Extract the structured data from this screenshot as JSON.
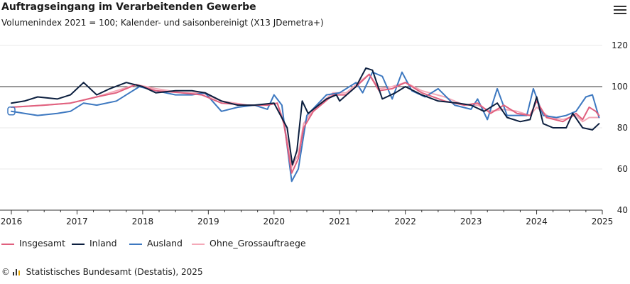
{
  "header": {
    "title": "Auftragseingang im Verarbeitenden Gewerbe",
    "subtitle": "Volumenindex 2021 = 100; Kalender- und saisonbereinigt (X13 JDemetra+)"
  },
  "menu": {
    "icon": "hamburger-menu-icon"
  },
  "footer": {
    "copyright": "©",
    "icon": "destatis-logo-icon",
    "source": "Statistisches Bundesamt (Destatis), 2025"
  },
  "colors": {
    "insgesamt": "#e0607e",
    "inland": "#0c1f3f",
    "ausland": "#3d78c0",
    "ohne": "#f4a9b8",
    "reference_line": "#333333",
    "grid": "#e8e8e8"
  },
  "chart_data": {
    "type": "line",
    "title": "Auftragseingang im Verarbeitenden Gewerbe",
    "subtitle": "Volumenindex 2021 = 100; Kalender- und saisonbereinigt (X13 JDemetra+)",
    "xlabel": "",
    "ylabel": "",
    "x_range": [
      2016,
      2025
    ],
    "ylim": [
      40,
      120
    ],
    "y_ticks": [
      40,
      60,
      80,
      100,
      120
    ],
    "x_ticks": [
      "2016",
      "2017",
      "2018",
      "2019",
      "2020",
      "2021",
      "2022",
      "2023",
      "2024",
      "2025"
    ],
    "reference_line": 100,
    "grid": true,
    "legend_position": "bottom-left",
    "series": [
      {
        "name": "Insgesamt",
        "color_key": "insgesamt",
        "values": [
          {
            "x": 2016.0,
            "y": 90
          },
          {
            "x": 2016.5,
            "y": 91
          },
          {
            "x": 2016.9,
            "y": 92
          },
          {
            "x": 2017.3,
            "y": 95
          },
          {
            "x": 2017.6,
            "y": 97
          },
          {
            "x": 2017.9,
            "y": 101
          },
          {
            "x": 2018.2,
            "y": 98
          },
          {
            "x": 2018.6,
            "y": 97
          },
          {
            "x": 2018.9,
            "y": 96
          },
          {
            "x": 2019.2,
            "y": 92
          },
          {
            "x": 2019.6,
            "y": 91
          },
          {
            "x": 2019.9,
            "y": 91
          },
          {
            "x": 2020.05,
            "y": 92
          },
          {
            "x": 2020.15,
            "y": 82
          },
          {
            "x": 2020.27,
            "y": 58
          },
          {
            "x": 2020.37,
            "y": 65
          },
          {
            "x": 2020.45,
            "y": 80
          },
          {
            "x": 2020.6,
            "y": 88
          },
          {
            "x": 2020.9,
            "y": 96
          },
          {
            "x": 2021.1,
            "y": 96
          },
          {
            "x": 2021.25,
            "y": 100
          },
          {
            "x": 2021.45,
            "y": 106
          },
          {
            "x": 2021.6,
            "y": 98
          },
          {
            "x": 2021.8,
            "y": 99
          },
          {
            "x": 2022.0,
            "y": 102
          },
          {
            "x": 2022.25,
            "y": 97
          },
          {
            "x": 2022.6,
            "y": 93
          },
          {
            "x": 2022.9,
            "y": 91
          },
          {
            "x": 2023.1,
            "y": 92
          },
          {
            "x": 2023.3,
            "y": 87
          },
          {
            "x": 2023.5,
            "y": 91
          },
          {
            "x": 2023.7,
            "y": 87
          },
          {
            "x": 2023.9,
            "y": 86
          },
          {
            "x": 2024.0,
            "y": 93
          },
          {
            "x": 2024.15,
            "y": 85
          },
          {
            "x": 2024.4,
            "y": 83
          },
          {
            "x": 2024.6,
            "y": 87
          },
          {
            "x": 2024.7,
            "y": 84
          },
          {
            "x": 2024.8,
            "y": 90
          },
          {
            "x": 2024.9,
            "y": 88
          },
          {
            "x": 2024.95,
            "y": 86
          }
        ]
      },
      {
        "name": "Inland",
        "color_key": "inland",
        "values": [
          {
            "x": 2016.0,
            "y": 92
          },
          {
            "x": 2016.2,
            "y": 93
          },
          {
            "x": 2016.4,
            "y": 95
          },
          {
            "x": 2016.7,
            "y": 94
          },
          {
            "x": 2016.9,
            "y": 96
          },
          {
            "x": 2017.1,
            "y": 102
          },
          {
            "x": 2017.3,
            "y": 96
          },
          {
            "x": 2017.5,
            "y": 99
          },
          {
            "x": 2017.75,
            "y": 102
          },
          {
            "x": 2018.0,
            "y": 100
          },
          {
            "x": 2018.2,
            "y": 97
          },
          {
            "x": 2018.5,
            "y": 98
          },
          {
            "x": 2018.75,
            "y": 98
          },
          {
            "x": 2018.95,
            "y": 97
          },
          {
            "x": 2019.2,
            "y": 93
          },
          {
            "x": 2019.45,
            "y": 91
          },
          {
            "x": 2019.7,
            "y": 91
          },
          {
            "x": 2020.0,
            "y": 92
          },
          {
            "x": 2020.2,
            "y": 80
          },
          {
            "x": 2020.28,
            "y": 62
          },
          {
            "x": 2020.35,
            "y": 69
          },
          {
            "x": 2020.43,
            "y": 93
          },
          {
            "x": 2020.52,
            "y": 87
          },
          {
            "x": 2020.8,
            "y": 94
          },
          {
            "x": 2020.95,
            "y": 96
          },
          {
            "x": 2021.0,
            "y": 93
          },
          {
            "x": 2021.25,
            "y": 100
          },
          {
            "x": 2021.4,
            "y": 109
          },
          {
            "x": 2021.5,
            "y": 108
          },
          {
            "x": 2021.65,
            "y": 94
          },
          {
            "x": 2021.85,
            "y": 97
          },
          {
            "x": 2022.0,
            "y": 100
          },
          {
            "x": 2022.25,
            "y": 96
          },
          {
            "x": 2022.5,
            "y": 93
          },
          {
            "x": 2022.8,
            "y": 92
          },
          {
            "x": 2023.0,
            "y": 91
          },
          {
            "x": 2023.2,
            "y": 88
          },
          {
            "x": 2023.4,
            "y": 92
          },
          {
            "x": 2023.55,
            "y": 85
          },
          {
            "x": 2023.75,
            "y": 83
          },
          {
            "x": 2023.9,
            "y": 84
          },
          {
            "x": 2024.0,
            "y": 95
          },
          {
            "x": 2024.1,
            "y": 82
          },
          {
            "x": 2024.25,
            "y": 80
          },
          {
            "x": 2024.45,
            "y": 80
          },
          {
            "x": 2024.55,
            "y": 87
          },
          {
            "x": 2024.7,
            "y": 80
          },
          {
            "x": 2024.85,
            "y": 79
          },
          {
            "x": 2024.95,
            "y": 82
          }
        ]
      },
      {
        "name": "Ausland",
        "color_key": "ausland",
        "values": [
          {
            "x": 2016.0,
            "y": 88
          },
          {
            "x": 2016.2,
            "y": 87
          },
          {
            "x": 2016.4,
            "y": 86
          },
          {
            "x": 2016.7,
            "y": 87
          },
          {
            "x": 2016.9,
            "y": 88
          },
          {
            "x": 2017.1,
            "y": 92
          },
          {
            "x": 2017.3,
            "y": 91
          },
          {
            "x": 2017.6,
            "y": 93
          },
          {
            "x": 2017.8,
            "y": 97
          },
          {
            "x": 2017.95,
            "y": 100
          },
          {
            "x": 2018.2,
            "y": 98
          },
          {
            "x": 2018.5,
            "y": 96
          },
          {
            "x": 2018.75,
            "y": 96
          },
          {
            "x": 2018.95,
            "y": 97
          },
          {
            "x": 2019.2,
            "y": 88
          },
          {
            "x": 2019.45,
            "y": 90
          },
          {
            "x": 2019.7,
            "y": 91
          },
          {
            "x": 2019.9,
            "y": 89
          },
          {
            "x": 2020.0,
            "y": 96
          },
          {
            "x": 2020.12,
            "y": 91
          },
          {
            "x": 2020.27,
            "y": 54
          },
          {
            "x": 2020.37,
            "y": 60
          },
          {
            "x": 2020.5,
            "y": 86
          },
          {
            "x": 2020.8,
            "y": 96
          },
          {
            "x": 2021.0,
            "y": 97
          },
          {
            "x": 2021.25,
            "y": 102
          },
          {
            "x": 2021.35,
            "y": 97
          },
          {
            "x": 2021.5,
            "y": 107
          },
          {
            "x": 2021.65,
            "y": 105
          },
          {
            "x": 2021.8,
            "y": 94
          },
          {
            "x": 2021.95,
            "y": 107
          },
          {
            "x": 2022.1,
            "y": 98
          },
          {
            "x": 2022.3,
            "y": 95
          },
          {
            "x": 2022.5,
            "y": 99
          },
          {
            "x": 2022.75,
            "y": 91
          },
          {
            "x": 2023.0,
            "y": 89
          },
          {
            "x": 2023.1,
            "y": 94
          },
          {
            "x": 2023.25,
            "y": 84
          },
          {
            "x": 2023.4,
            "y": 99
          },
          {
            "x": 2023.55,
            "y": 86
          },
          {
            "x": 2023.7,
            "y": 86
          },
          {
            "x": 2023.85,
            "y": 86
          },
          {
            "x": 2023.95,
            "y": 99
          },
          {
            "x": 2024.1,
            "y": 86
          },
          {
            "x": 2024.3,
            "y": 85
          },
          {
            "x": 2024.45,
            "y": 86
          },
          {
            "x": 2024.6,
            "y": 88
          },
          {
            "x": 2024.75,
            "y": 95
          },
          {
            "x": 2024.85,
            "y": 96
          },
          {
            "x": 2024.95,
            "y": 85
          }
        ]
      },
      {
        "name": "Ohne_Grossauftraege",
        "color_key": "ohne",
        "values": [
          {
            "x": 2016.0,
            "y": 90
          },
          {
            "x": 2016.5,
            "y": 91
          },
          {
            "x": 2016.9,
            "y": 92
          },
          {
            "x": 2017.3,
            "y": 95
          },
          {
            "x": 2017.6,
            "y": 98
          },
          {
            "x": 2017.9,
            "y": 101
          },
          {
            "x": 2018.2,
            "y": 99
          },
          {
            "x": 2018.6,
            "y": 97
          },
          {
            "x": 2018.9,
            "y": 97
          },
          {
            "x": 2019.2,
            "y": 93
          },
          {
            "x": 2019.6,
            "y": 91
          },
          {
            "x": 2019.9,
            "y": 91
          },
          {
            "x": 2020.05,
            "y": 92
          },
          {
            "x": 2020.15,
            "y": 83
          },
          {
            "x": 2020.27,
            "y": 61
          },
          {
            "x": 2020.37,
            "y": 67
          },
          {
            "x": 2020.45,
            "y": 82
          },
          {
            "x": 2020.6,
            "y": 89
          },
          {
            "x": 2020.9,
            "y": 97
          },
          {
            "x": 2021.1,
            "y": 97
          },
          {
            "x": 2021.25,
            "y": 101
          },
          {
            "x": 2021.45,
            "y": 106
          },
          {
            "x": 2021.6,
            "y": 99
          },
          {
            "x": 2021.8,
            "y": 100
          },
          {
            "x": 2022.0,
            "y": 102
          },
          {
            "x": 2022.25,
            "y": 98
          },
          {
            "x": 2022.6,
            "y": 95
          },
          {
            "x": 2022.9,
            "y": 91
          },
          {
            "x": 2023.1,
            "y": 91
          },
          {
            "x": 2023.3,
            "y": 88
          },
          {
            "x": 2023.5,
            "y": 89
          },
          {
            "x": 2023.7,
            "y": 88
          },
          {
            "x": 2023.9,
            "y": 86
          },
          {
            "x": 2024.0,
            "y": 90
          },
          {
            "x": 2024.2,
            "y": 85
          },
          {
            "x": 2024.4,
            "y": 84
          },
          {
            "x": 2024.6,
            "y": 86
          },
          {
            "x": 2024.7,
            "y": 83
          },
          {
            "x": 2024.8,
            "y": 85
          },
          {
            "x": 2024.95,
            "y": 85
          }
        ]
      }
    ]
  }
}
